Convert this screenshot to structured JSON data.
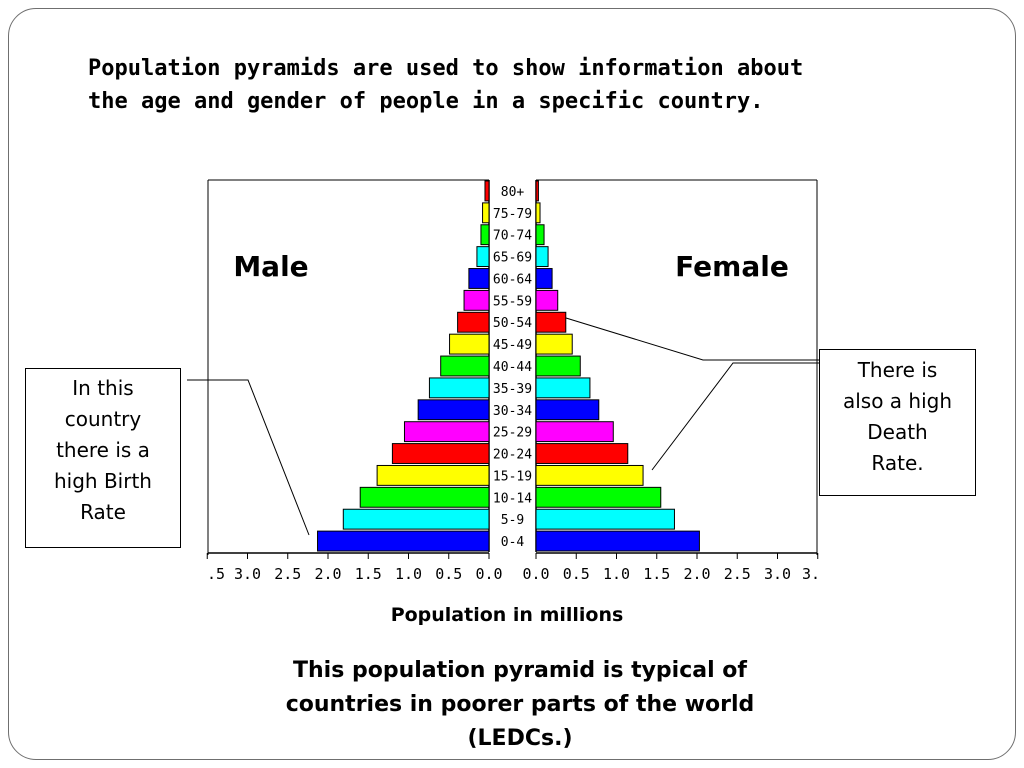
{
  "intro": {
    "line1": "Population pyramids are used to show information about",
    "line2": "the age and gender of people in a specific country."
  },
  "chart_data": {
    "type": "bar",
    "orientation": "horizontal-pyramid",
    "categories": [
      "80+",
      "75-79",
      "70-74",
      "65-69",
      "60-64",
      "55-59",
      "50-54",
      "45-49",
      "40-44",
      "35-39",
      "30-34",
      "25-29",
      "20-24",
      "15-19",
      "10-14",
      "5-9",
      "0-4"
    ],
    "series": [
      {
        "name": "Male",
        "values": [
          0.05,
          0.08,
          0.1,
          0.15,
          0.25,
          0.31,
          0.39,
          0.49,
          0.6,
          0.74,
          0.88,
          1.05,
          1.2,
          1.39,
          1.6,
          1.81,
          2.13
        ]
      },
      {
        "name": "Female",
        "values": [
          0.03,
          0.05,
          0.1,
          0.15,
          0.2,
          0.27,
          0.37,
          0.45,
          0.55,
          0.67,
          0.78,
          0.96,
          1.14,
          1.33,
          1.55,
          1.72,
          2.03
        ]
      }
    ],
    "bar_colors": [
      "#ff0000",
      "#ffff00",
      "#00ff00",
      "#00ffff",
      "#0000ff",
      "#ff00ff",
      "#ff0000",
      "#ffff00",
      "#00ff00",
      "#00ffff",
      "#0000ff",
      "#ff00ff",
      "#ff0000",
      "#ffff00",
      "#00ff00",
      "#00ffff",
      "#0000ff"
    ],
    "xlim": [
      0,
      3.5
    ],
    "male_tick_labels": [
      ".5",
      "3.0",
      "2.5",
      "2.0",
      "1.5",
      "1.0",
      "0.5",
      "0.0"
    ],
    "female_tick_labels": [
      "0.0",
      "0.5",
      "1.0",
      "1.5",
      "2.0",
      "2.5",
      "3.0",
      "3."
    ],
    "xlabel": "Population in millions",
    "grid": false
  },
  "callouts": {
    "birth": [
      "In this",
      "country",
      "there is a",
      "high Birth",
      "Rate"
    ],
    "death": [
      "There is",
      "also a high",
      "Death",
      "Rate."
    ]
  },
  "conclusion": {
    "line1": "This population pyramid is typical of",
    "line2": "countries in poorer parts of the world",
    "line3": "(LEDCs.)"
  }
}
